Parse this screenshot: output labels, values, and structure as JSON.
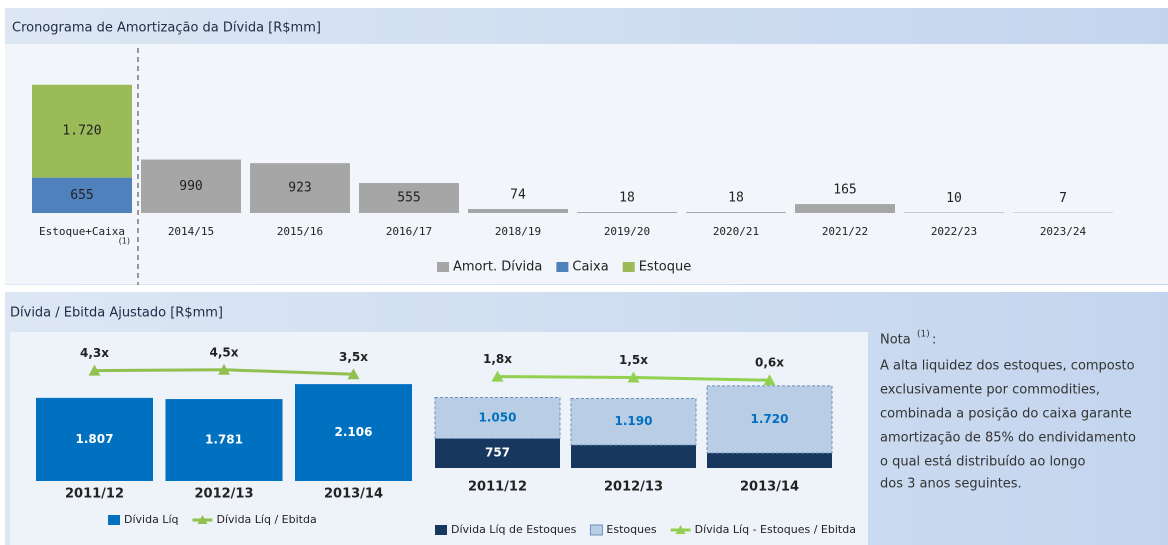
{
  "chart_data": [
    {
      "type": "bar",
      "stacked": true,
      "title": "Cronograma de Amortização da Dívida [R$mm]",
      "categories": [
        "Estoque+Caixa",
        "2014/15",
        "2015/16",
        "2016/17",
        "2018/19",
        "2019/20",
        "2020/21",
        "2021/22",
        "2022/23",
        "2023/24"
      ],
      "footnote": "(1)",
      "series": [
        {
          "name": "Amort. Dívida",
          "color": "#a6a6a6",
          "values": [
            null,
            990,
            923,
            555,
            74,
            18,
            18,
            165,
            10,
            7
          ]
        },
        {
          "name": "Caixa",
          "color": "#4f81bd",
          "values": [
            655,
            null,
            null,
            null,
            null,
            null,
            null,
            null,
            null,
            null
          ]
        },
        {
          "name": "Estoque",
          "color": "#9bbb59",
          "values": [
            1720,
            null,
            null,
            null,
            null,
            null,
            null,
            null,
            null,
            null
          ],
          "value_labels": [
            "1.720",
            null,
            null,
            null,
            null,
            null,
            null,
            null,
            null,
            null
          ]
        }
      ]
    },
    {
      "type": "bar",
      "title": "Dívida / Ebitda Ajustado [R$mm]",
      "categories": [
        "2011/12",
        "2012/13",
        "2013/14"
      ],
      "series": [
        {
          "name": "Dívida Líq",
          "color": "#0070c0",
          "values": [
            1807,
            1781,
            2106
          ],
          "value_labels": [
            "1.807",
            "1.781",
            "2.106"
          ]
        },
        {
          "name": "Dívida Líq / Ebitda",
          "type": "line",
          "axis": "y2",
          "color": "#92c050",
          "values": [
            4.3,
            4.5,
            3.5
          ],
          "value_labels": [
            "4,3x",
            "4,5x",
            "3,5x"
          ]
        }
      ]
    },
    {
      "type": "bar",
      "stacked": true,
      "categories": [
        "2011/12",
        "2012/13",
        "2013/14"
      ],
      "series": [
        {
          "name": "Dívida Líq de Estoques",
          "color": "#17375e",
          "values": [
            757,
            591,
            386
          ]
        },
        {
          "name": "Estoques",
          "color": "#b9cde5",
          "values": [
            1050,
            1190,
            1720
          ],
          "value_labels": [
            "1.050",
            "1.190",
            "1.720"
          ]
        },
        {
          "name": "Dívida Líq - Estoques / Ebitda",
          "type": "line",
          "axis": "y2",
          "color": "#92d050",
          "values": [
            1.8,
            1.5,
            0.6
          ],
          "value_labels": [
            "1,8x",
            "1,5x",
            "0,6x"
          ]
        }
      ]
    }
  ],
  "note": {
    "title": "Nota",
    "superscript": "(1)",
    "colon": ":",
    "lines": [
      "A alta liquidez dos estoques, composto",
      "exclusivamente por commodities,",
      "combinada a posição do caixa garante",
      "amortização de 85% do endividamento",
      "o qual está distribuído ao longo",
      "dos 3 anos seguintes."
    ]
  }
}
